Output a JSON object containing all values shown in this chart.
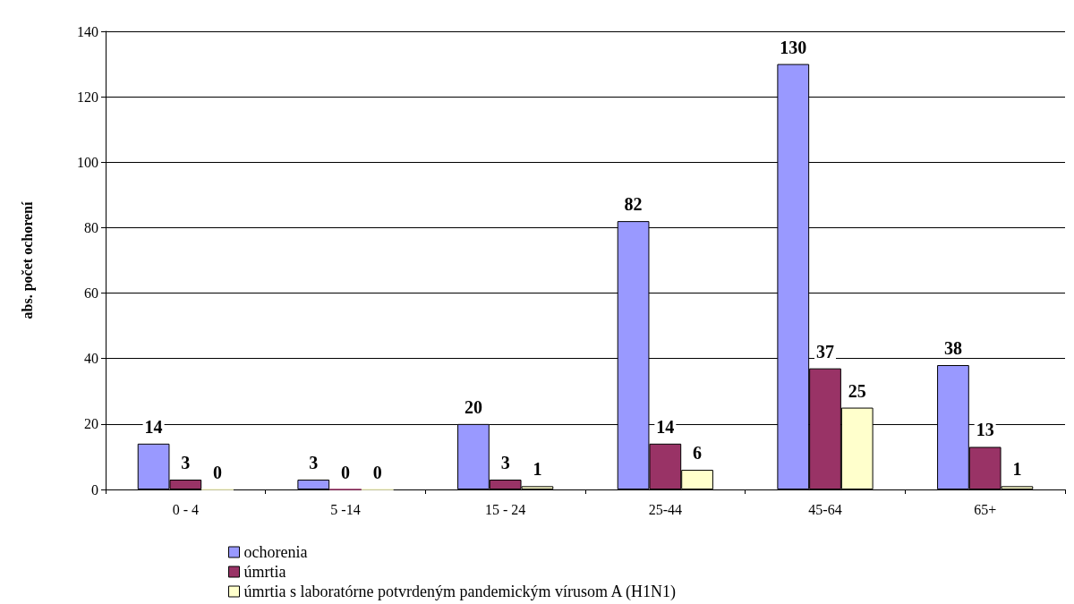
{
  "chart_data": {
    "type": "bar",
    "ylabel": "abs. počet ochorení",
    "categories": [
      "0 - 4",
      "5 -14",
      "15 - 24",
      "25-44",
      "45-64",
      "65+"
    ],
    "series": [
      {
        "name": "ochorenia",
        "color": "#9999ff",
        "values": [
          14,
          3,
          20,
          82,
          130,
          38
        ]
      },
      {
        "name": "úmrtia",
        "color": "#993366",
        "values": [
          3,
          0,
          3,
          14,
          37,
          13
        ]
      },
      {
        "name": "úmrtia s laboratórne potvrdeným pandemickým vírusom A (H1N1)",
        "color": "#ffffcc",
        "values": [
          0,
          0,
          1,
          6,
          25,
          1
        ]
      }
    ],
    "ylim": [
      0,
      140
    ],
    "yticks": [
      0,
      20,
      40,
      60,
      80,
      100,
      120,
      140
    ],
    "grid": "y",
    "legend": "bottom",
    "data_labels": true
  }
}
